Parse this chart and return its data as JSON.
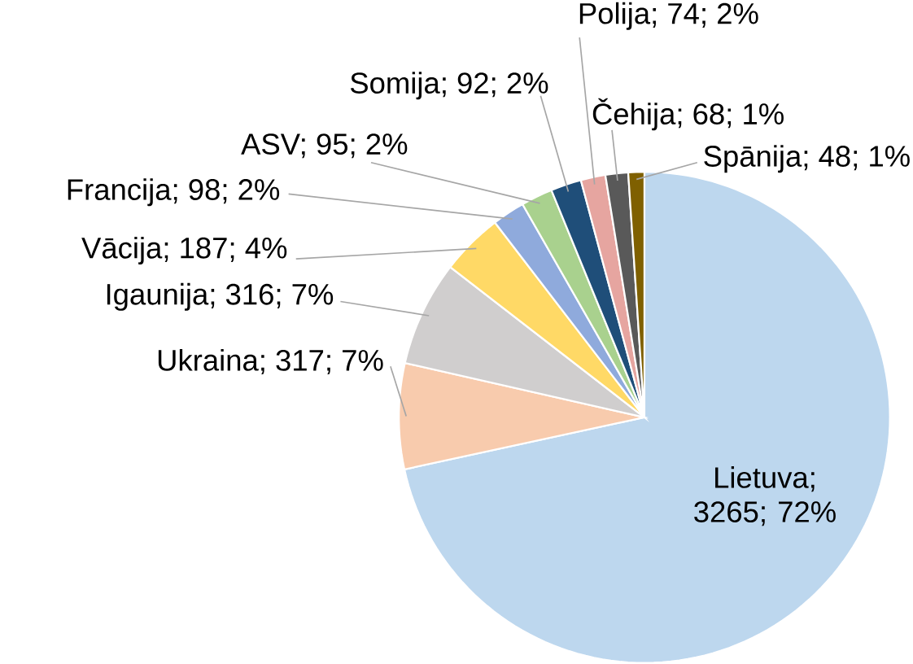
{
  "chart_data": {
    "type": "pie",
    "categories": [
      "Lietuva; 3265; 72%",
      "Ukraina; 317; 7%",
      "Igaunija; 316; 7%",
      "Vācija; 187; 4%",
      "Francija; 98; 2%",
      "ASV; 95; 2%",
      "Somija; 92; 2%",
      "Polija; 74; 2%",
      "Čehija; 68; 1%",
      "Spānija; 48; 1%"
    ],
    "values": [
      3265,
      317,
      316,
      187,
      98,
      95,
      92,
      74,
      68,
      48
    ],
    "colors": [
      "#bdd7ee",
      "#f8cbad",
      "#d0cece",
      "#ffd966",
      "#8faadc",
      "#a9d18e",
      "#1f4e79",
      "#e6a5a0",
      "#595959",
      "#7f6000"
    ]
  }
}
